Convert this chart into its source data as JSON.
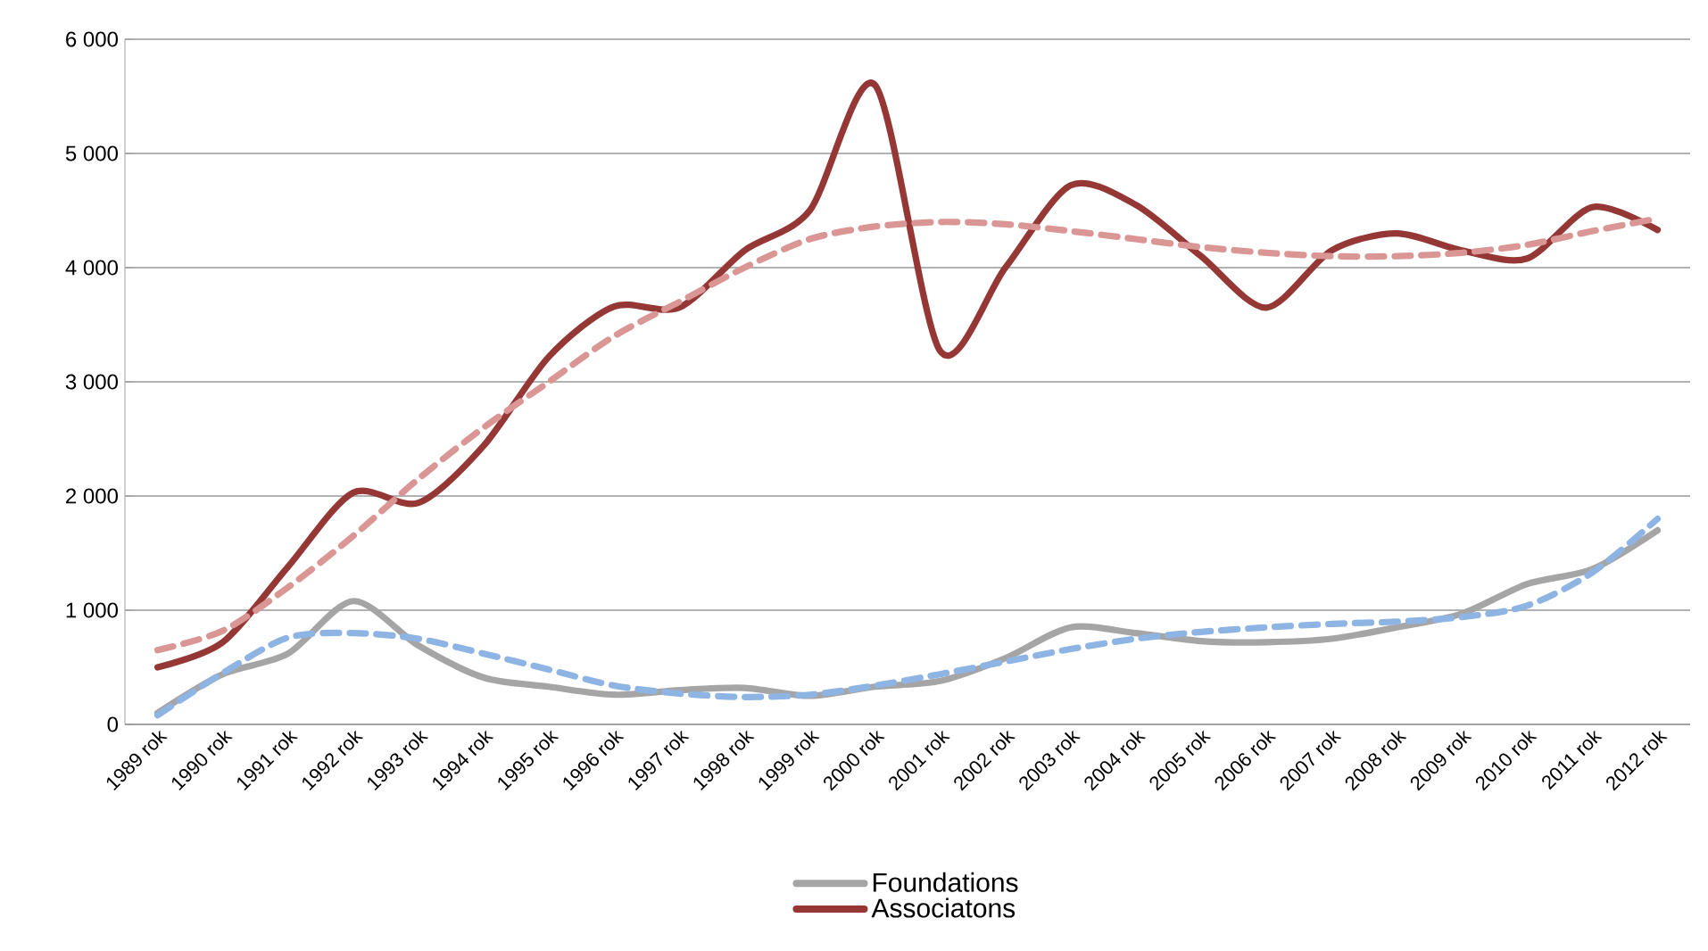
{
  "chart_data": {
    "type": "line",
    "categories": [
      "1989 rok",
      "1990 rok",
      "1991 rok",
      "1992 rok",
      "1993 rok",
      "1994 rok",
      "1995 rok",
      "1996 rok",
      "1997 rok",
      "1998 rok",
      "1999 rok",
      "2000 rok",
      "2001 rok",
      "2002 rok",
      "2003 rok",
      "2004 rok",
      "2005 rok",
      "2006 rok",
      "2007 rok",
      "2008 rok",
      "2009 rok",
      "2010 rok",
      "2011 rok",
      "2012 rok"
    ],
    "series": [
      {
        "name": "Foundations",
        "color": "#a5a5a5",
        "values": [
          100,
          440,
          620,
          1080,
          690,
          410,
          330,
          260,
          300,
          320,
          250,
          330,
          380,
          580,
          850,
          800,
          730,
          720,
          750,
          850,
          970,
          1230,
          1360,
          1700
        ]
      },
      {
        "name": "Associatons",
        "color": "#953735",
        "values": [
          500,
          720,
          1380,
          2030,
          1940,
          2440,
          3220,
          3660,
          3650,
          4150,
          4500,
          5600,
          3270,
          4000,
          4720,
          4550,
          4100,
          3650,
          4150,
          4300,
          4150,
          4080,
          4530,
          4330
        ]
      },
      {
        "type": "line",
        "line_style": "dashed",
        "color": "#d99694",
        "values": [
          650,
          820,
          1200,
          1650,
          2150,
          2600,
          3000,
          3400,
          3700,
          4000,
          4250,
          4360,
          4400,
          4380,
          4320,
          4250,
          4180,
          4130,
          4100,
          4100,
          4130,
          4200,
          4320,
          4430
        ]
      },
      {
        "type": "line",
        "line_style": "dashed",
        "color": "#8eb4e3",
        "values": [
          80,
          450,
          760,
          800,
          750,
          620,
          480,
          340,
          270,
          240,
          260,
          340,
          440,
          550,
          660,
          750,
          810,
          850,
          880,
          900,
          940,
          1040,
          1330,
          1800
        ]
      }
    ],
    "ylim": [
      0,
      6000
    ],
    "yticks": [
      0,
      {
        "value": 1000,
        "label": "1 000"
      },
      {
        "value": 2000,
        "label": "2 000"
      },
      {
        "value": 3000,
        "label": "3 000"
      },
      {
        "value": 4000,
        "label": "4 000"
      },
      {
        "value": 5000,
        "label": "5 000"
      },
      {
        "value": 6000,
        "label": "6 000"
      }
    ],
    "grid": "y",
    "legend": "bottom",
    "marker": "none",
    "line_style": "solid"
  }
}
